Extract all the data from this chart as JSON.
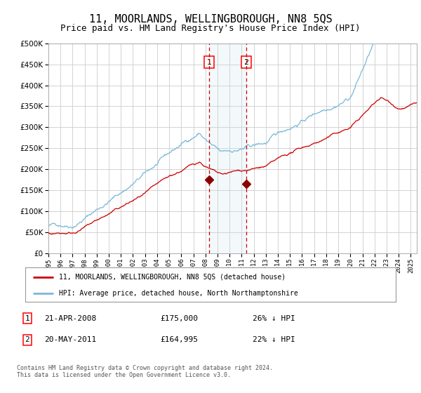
{
  "title": "11, MOORLANDS, WELLINGBOROUGH, NN8 5QS",
  "subtitle": "Price paid vs. HM Land Registry's House Price Index (HPI)",
  "title_fontsize": 11,
  "subtitle_fontsize": 9,
  "hpi_color": "#7ab8d9",
  "price_color": "#cc0000",
  "marker_color": "#8b0000",
  "bg_color": "#ffffff",
  "grid_color": "#cccccc",
  "highlight_color": "#cce0f0",
  "vline_color": "#cc0000",
  "ylim": [
    0,
    500000
  ],
  "yticks": [
    0,
    50000,
    100000,
    150000,
    200000,
    250000,
    300000,
    350000,
    400000,
    450000,
    500000
  ],
  "sale1_date_num": 2008.31,
  "sale1_price": 175000,
  "sale2_date_num": 2011.39,
  "sale2_price": 164995,
  "legend_label_red": "11, MOORLANDS, WELLINGBOROUGH, NN8 5QS (detached house)",
  "legend_label_blue": "HPI: Average price, detached house, North Northamptonshire",
  "footer": "Contains HM Land Registry data © Crown copyright and database right 2024.\nThis data is licensed under the Open Government Licence v3.0.",
  "xmin": 1995.0,
  "xmax": 2025.5
}
